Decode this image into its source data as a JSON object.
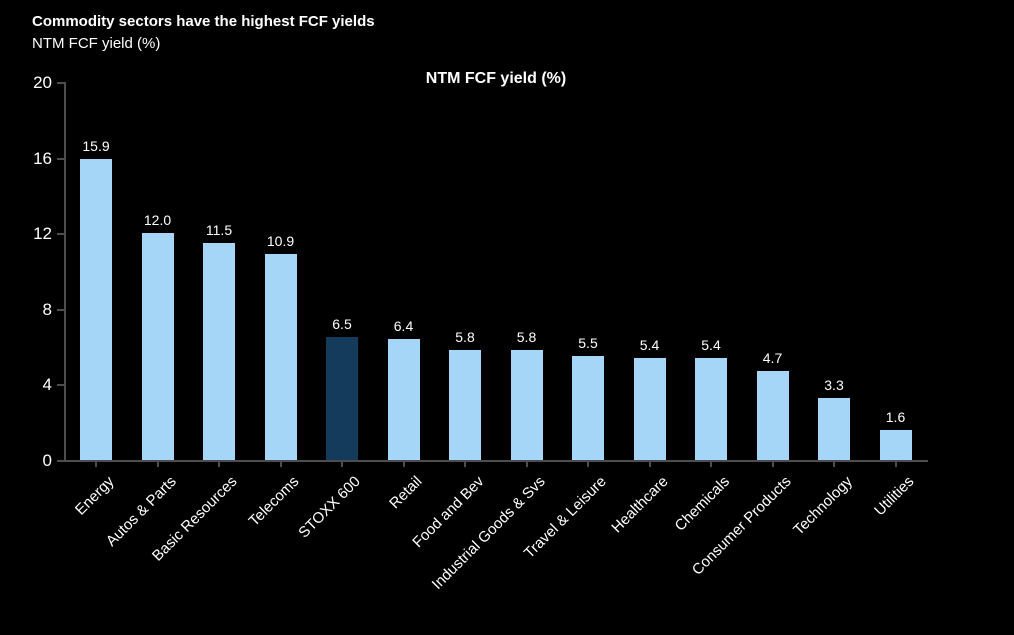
{
  "header": {
    "title": "Commodity sectors have the highest FCF yields",
    "subtitle": "NTM FCF yield (%)"
  },
  "chart_data": {
    "type": "bar",
    "title": "NTM FCF yield (%)",
    "categories": [
      "Energy",
      "Autos & Parts",
      "Basic Resources",
      "Telecoms",
      "STOXX 600",
      "Retail",
      "Food and Bev",
      "Industrial Goods & Svs",
      "Travel & Leisure",
      "Healthcare",
      "Chemicals",
      "Consumer Products",
      "Technology",
      "Utilities"
    ],
    "values": [
      15.9,
      12.0,
      11.5,
      10.9,
      6.5,
      6.4,
      5.8,
      5.8,
      5.5,
      5.4,
      5.4,
      4.7,
      3.3,
      1.6
    ],
    "value_labels": [
      "15.9",
      "12.0",
      "11.5",
      "10.9",
      "6.5",
      "6.4",
      "5.8",
      "5.8",
      "5.5",
      "5.4",
      "5.4",
      "4.7",
      "3.3",
      "1.6"
    ],
    "highlight": {
      "category": "STOXX 600",
      "index": 4
    },
    "xlabel": "",
    "ylabel": "",
    "ylim": [
      0,
      20
    ],
    "yticks": [
      0,
      4,
      8,
      12,
      16,
      20
    ],
    "grid": false,
    "legend": "none",
    "colors": {
      "bar": "#A5D5F7",
      "highlight_bar": "#143A5C",
      "axis": "#4D4D4D",
      "text": "#FFFFFF",
      "background": "#000000"
    }
  }
}
